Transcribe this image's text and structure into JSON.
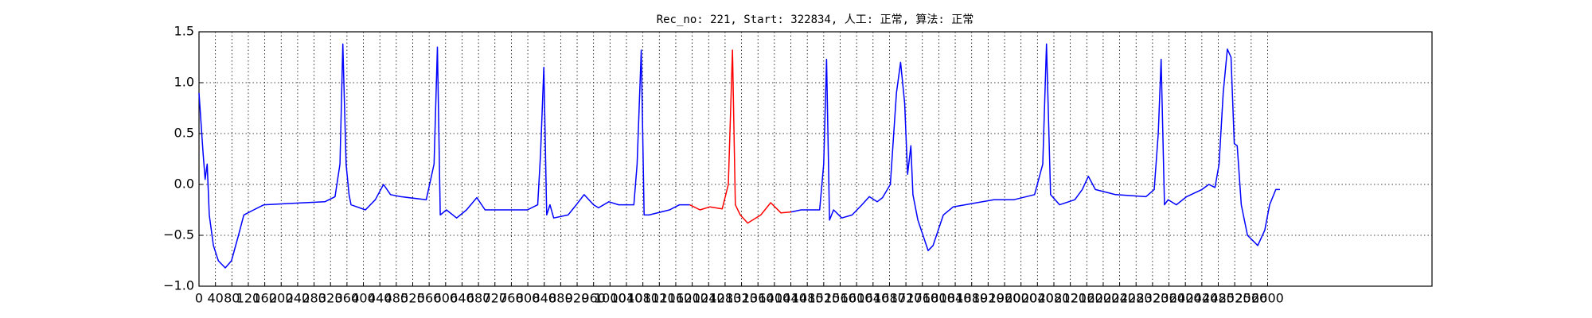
{
  "chart_data": {
    "type": "line",
    "title": "Rec_no: 221, Start: 322834, 人工: 正常, 算法: 正常",
    "xlim": [
      0,
      3000
    ],
    "xticks": [
      0,
      40,
      80,
      120,
      160,
      200,
      240,
      280,
      320,
      360,
      400,
      440,
      480,
      520,
      560,
      600,
      640,
      680,
      720,
      760,
      800,
      840,
      880,
      920,
      960,
      1000,
      1040,
      1080,
      1120,
      1160,
      1200,
      1240,
      1280,
      1320,
      1360,
      1400,
      1440,
      1480,
      1520,
      1560,
      1600,
      1640,
      1680,
      1720,
      1760,
      1800,
      1840,
      1880,
      1920,
      1960,
      2000,
      2040,
      2080,
      2120,
      2160,
      2200,
      2240,
      2280,
      2320,
      2360,
      2400,
      2440,
      2480,
      2520,
      2560,
      2600
    ],
    "ylim": [
      -1.0,
      1.5
    ],
    "yticks": [
      {
        "value": -1.0,
        "label": "−1.0"
      },
      {
        "value": -0.5,
        "label": "−0.5"
      },
      {
        "value": 0.0,
        "label": "0.0"
      },
      {
        "value": 0.5,
        "label": "0.5"
      },
      {
        "value": 1.0,
        "label": "1.0"
      },
      {
        "value": 1.5,
        "label": "1.5"
      }
    ],
    "grid": true,
    "series": [
      {
        "color": "#0000ff",
        "x": [
          0,
          10,
          15,
          20,
          25,
          35,
          47,
          64,
          79,
          96,
          109,
          133,
          158,
          257,
          306,
          331,
          343,
          350,
          358,
          365,
          370,
          405,
          429,
          449,
          466,
          491,
          553,
          572,
          580,
          587,
          602,
          627,
          651,
          676,
          696,
          725,
          799,
          824,
          831,
          839,
          846,
          854,
          863,
          898,
          918,
          937,
          960,
          972,
          997,
          1021,
          1058,
          1066,
          1076,
          1083,
          1095,
          1145,
          1169,
          1194,
          1300,
          1441,
          1465,
          1510,
          1520,
          1527,
          1534,
          1544,
          1564,
          1589,
          1613,
          1631,
          1650,
          1663,
          1682,
          1697,
          1707,
          1717,
          1724,
          1732,
          1737,
          1749,
          1774,
          1786,
          1811,
          1835,
          1934,
          1983,
          2033,
          2053,
          2062,
          2072,
          2094,
          2131,
          2149,
          2164,
          2181,
          2230,
          2304,
          2324,
          2334,
          2341,
          2349,
          2358,
          2378,
          2403,
          2440,
          2457,
          2472,
          2482,
          2492,
          2502,
          2511,
          2519,
          2526,
          2536,
          2551,
          2576,
          2593,
          2605,
          2620,
          2630
        ],
        "values": [
          0.9,
          0.3,
          0.05,
          0.2,
          -0.3,
          -0.6,
          -0.75,
          -0.82,
          -0.75,
          -0.5,
          -0.3,
          -0.25,
          -0.2,
          -0.18,
          -0.17,
          -0.12,
          0.2,
          1.38,
          0.2,
          -0.1,
          -0.2,
          -0.25,
          -0.15,
          0.0,
          -0.1,
          -0.12,
          -0.15,
          0.2,
          1.35,
          -0.3,
          -0.25,
          -0.33,
          -0.25,
          -0.13,
          -0.25,
          -0.25,
          -0.25,
          -0.2,
          0.3,
          1.15,
          -0.3,
          -0.2,
          -0.33,
          -0.3,
          -0.2,
          -0.1,
          -0.2,
          -0.23,
          -0.17,
          -0.2,
          -0.2,
          0.2,
          1.32,
          -0.3,
          -0.3,
          -0.25,
          -0.2,
          -0.2,
          null,
          -0.27,
          -0.25,
          -0.25,
          0.2,
          1.23,
          -0.35,
          -0.25,
          -0.33,
          -0.3,
          -0.2,
          -0.12,
          -0.17,
          -0.13,
          0.0,
          0.9,
          1.2,
          0.8,
          0.1,
          0.38,
          -0.1,
          -0.35,
          -0.65,
          -0.6,
          -0.3,
          -0.22,
          -0.15,
          -0.15,
          -0.1,
          0.2,
          1.38,
          -0.1,
          -0.2,
          -0.15,
          -0.05,
          0.08,
          -0.05,
          -0.1,
          -0.12,
          -0.05,
          0.5,
          1.23,
          -0.2,
          -0.15,
          -0.2,
          -0.12,
          -0.05,
          0.0,
          -0.03,
          0.2,
          0.9,
          1.33,
          1.25,
          0.4,
          0.38,
          -0.2,
          -0.5,
          -0.6,
          -0.45,
          -0.2,
          -0.05,
          -0.05
        ]
      },
      {
        "color": "#ff0000",
        "x": [
          1194,
          1219,
          1243,
          1273,
          1288,
          1298,
          1305,
          1317,
          1335,
          1367,
          1391,
          1416,
          1441
        ],
        "values": [
          -0.2,
          -0.25,
          -0.22,
          -0.24,
          0.0,
          1.32,
          -0.2,
          -0.3,
          -0.38,
          -0.3,
          -0.18,
          -0.28,
          -0.27
        ]
      }
    ]
  }
}
